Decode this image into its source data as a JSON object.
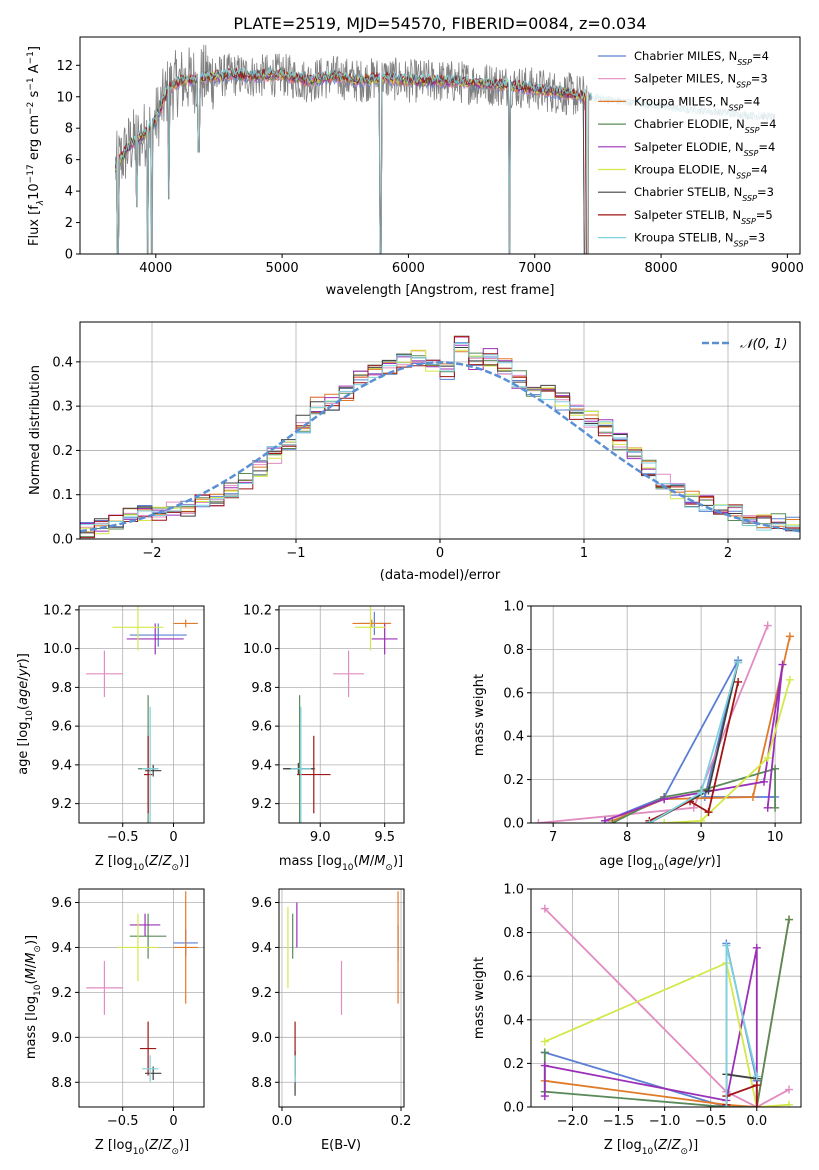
{
  "figure_title": "PLATE=2519, MJD=54570, FIBERID=0084, z=0.034",
  "legend_entries": [
    {
      "pre": "Chabrier MILES, N",
      "sub": "SSP",
      "post": "=4"
    },
    {
      "pre": "Salpeter MILES, N",
      "sub": "SSP",
      "post": "=3"
    },
    {
      "pre": "Kroupa MILES, N",
      "sub": "SSP",
      "post": "=4"
    },
    {
      "pre": "Chabrier ELODIE, N",
      "sub": "SSP",
      "post": "=4"
    },
    {
      "pre": "Salpeter ELODIE, N",
      "sub": "SSP",
      "post": "=4"
    },
    {
      "pre": "Kroupa ELODIE, N",
      "sub": "SSP",
      "post": "=4"
    },
    {
      "pre": "Chabrier STELIB, N",
      "sub": "SSP",
      "post": "=3"
    },
    {
      "pre": "Salpeter STELIB, N",
      "sub": "SSP",
      "post": "=5"
    },
    {
      "pre": "Kroupa STELIB, N",
      "sub": "SSP",
      "post": "=3"
    }
  ],
  "model_colors": [
    "#5b7fd4",
    "#e28cc2",
    "#e07b2a",
    "#5a8a5a",
    "#9b30b8",
    "#d4e84a",
    "#404040",
    "#a01515",
    "#7fd3de"
  ],
  "data_color": "#808080",
  "normal_color": "#5b8fd4",
  "chart_data": [
    {
      "type": "line",
      "id": "spectrum",
      "xlabel": "wavelength [Angstrom, rest frame]",
      "ylabel": "Flux [f_λ10^-17 erg cm^-2 s^-1 A^-1]",
      "xlim": [
        3400,
        9100
      ],
      "ylim": [
        0,
        13.8
      ],
      "xticks": [
        4000,
        5000,
        6000,
        7000,
        8000,
        9000
      ],
      "yticks": [
        0,
        2,
        4,
        6,
        8,
        10,
        12
      ],
      "grid": false,
      "legend_placement": "right",
      "continuum": {
        "x": [
          3680,
          3800,
          3900,
          4000,
          4100,
          4200,
          4400,
          4600,
          4800,
          5000,
          5200,
          5400,
          5600,
          5800,
          6000,
          6200,
          6500,
          6800,
          7000,
          7400,
          7800,
          8200,
          8500,
          8700,
          8900
        ],
        "y": [
          5.5,
          7.0,
          7.5,
          8.5,
          10.5,
          11.0,
          11.2,
          11.4,
          11.3,
          11.4,
          11.0,
          11.3,
          11.0,
          11.2,
          11.0,
          11.0,
          10.9,
          10.7,
          10.5,
          10.0,
          9.6,
          9.2,
          9.0,
          8.8,
          8.7
        ]
      },
      "noisy_series_end": 7430,
      "model_series_end": 7400,
      "narrow_features": [
        {
          "x": 3700,
          "y": 0
        },
        {
          "x": 3850,
          "y": 3.0
        },
        {
          "x": 3934,
          "y": 0
        },
        {
          "x": 3969,
          "y": 0
        },
        {
          "x": 4102,
          "y": 3.5
        },
        {
          "x": 4340,
          "y": 6.5
        },
        {
          "x": 5780,
          "y": 0
        },
        {
          "x": 6800,
          "y": 0
        },
        {
          "x": 7420,
          "y": 0
        }
      ]
    },
    {
      "type": "step",
      "id": "residual_hist",
      "xlabel": "(data-model)/error",
      "ylabel": "Normed distribution",
      "xlim": [
        -2.5,
        2.5
      ],
      "ylim": [
        0,
        0.49
      ],
      "xticks": [
        -2,
        -1,
        0,
        1,
        2
      ],
      "yticks": [
        0.0,
        0.1,
        0.2,
        0.3,
        0.4
      ],
      "grid": true,
      "legend_placement": "top-right",
      "legend_label": "𝒩(0, 1)",
      "bin_edges": [
        -2.5,
        -2.4,
        -2.3,
        -2.2,
        -2.1,
        -2.0,
        -1.9,
        -1.8,
        -1.7,
        -1.6,
        -1.5,
        -1.4,
        -1.3,
        -1.2,
        -1.1,
        -1.0,
        -0.9,
        -0.8,
        -0.7,
        -0.6,
        -0.5,
        -0.4,
        -0.3,
        -0.2,
        -0.1,
        0.0,
        0.1,
        0.2,
        0.3,
        0.4,
        0.5,
        0.6,
        0.7,
        0.8,
        0.9,
        1.0,
        1.1,
        1.2,
        1.3,
        1.4,
        1.5,
        1.6,
        1.7,
        1.8,
        1.9,
        2.0,
        2.1,
        2.2,
        2.3,
        2.4,
        2.5
      ],
      "hist_values": [
        0.02,
        0.03,
        0.04,
        0.05,
        0.06,
        0.06,
        0.07,
        0.07,
        0.08,
        0.09,
        0.11,
        0.13,
        0.16,
        0.19,
        0.22,
        0.26,
        0.3,
        0.31,
        0.33,
        0.36,
        0.38,
        0.39,
        0.4,
        0.41,
        0.39,
        0.38,
        0.44,
        0.4,
        0.41,
        0.39,
        0.36,
        0.34,
        0.33,
        0.31,
        0.29,
        0.27,
        0.25,
        0.22,
        0.19,
        0.16,
        0.13,
        0.11,
        0.09,
        0.08,
        0.07,
        0.06,
        0.05,
        0.04,
        0.04,
        0.03
      ],
      "normal_curve": {
        "mean": 0,
        "sigma": 1
      }
    },
    {
      "type": "scatter",
      "id": "age_vs_Z",
      "xlabel": "Z [log10(Z/Z☉)]",
      "ylabel": "age [log10(age/yr)]",
      "xlim": [
        -0.93,
        0.3
      ],
      "ylim": [
        9.1,
        10.22
      ],
      "xticks": [
        -0.5,
        0.0
      ],
      "yticks": [
        9.2,
        9.4,
        9.6,
        9.8,
        10.0,
        10.2
      ],
      "grid": true,
      "points": [
        {
          "x": -0.15,
          "y": 10.07,
          "ex": 0.28,
          "ey": 0.06,
          "c": 0
        },
        {
          "x": -0.68,
          "y": 9.87,
          "ex": 0.18,
          "ey": 0.12,
          "c": 1
        },
        {
          "x": 0.12,
          "y": 10.13,
          "ex": 0.12,
          "ey": 0.02,
          "c": 2
        },
        {
          "x": -0.25,
          "y": 9.38,
          "ex": 0.1,
          "ey": 0.38,
          "c": 3
        },
        {
          "x": -0.18,
          "y": 10.05,
          "ex": 0.28,
          "ey": 0.08,
          "c": 4
        },
        {
          "x": -0.35,
          "y": 10.11,
          "ex": 0.25,
          "ey": 0.12,
          "c": 5
        },
        {
          "x": -0.2,
          "y": 9.37,
          "ex": 0.08,
          "ey": 0.03,
          "c": 6
        },
        {
          "x": -0.25,
          "y": 9.35,
          "ex": 0.04,
          "ey": 0.2,
          "c": 7
        },
        {
          "x": -0.23,
          "y": 9.38,
          "ex": 0.08,
          "ey": 0.32,
          "c": 8
        }
      ]
    },
    {
      "type": "scatter",
      "id": "age_vs_mass",
      "xlabel": "mass [log10(M/M☉)]",
      "ylabel": "",
      "xlim": [
        8.68,
        9.65
      ],
      "ylim": [
        9.1,
        10.22
      ],
      "xticks": [
        9.0,
        9.5
      ],
      "yticks": [
        9.2,
        9.4,
        9.6,
        9.8,
        10.0,
        10.2
      ],
      "grid": true,
      "points": [
        {
          "x": 9.42,
          "y": 10.13,
          "ex": 0.12,
          "ey": 0.06,
          "c": 0
        },
        {
          "x": 9.22,
          "y": 9.87,
          "ex": 0.12,
          "ey": 0.12,
          "c": 1
        },
        {
          "x": 9.4,
          "y": 10.13,
          "ex": 0.15,
          "ey": 0.02,
          "c": 2
        },
        {
          "x": 8.84,
          "y": 9.38,
          "ex": 0.12,
          "ey": 0.38,
          "c": 3
        },
        {
          "x": 9.5,
          "y": 10.05,
          "ex": 0.1,
          "ey": 0.08,
          "c": 4
        },
        {
          "x": 9.39,
          "y": 10.11,
          "ex": 0.12,
          "ey": 0.12,
          "c": 5
        },
        {
          "x": 8.83,
          "y": 9.38,
          "ex": 0.12,
          "ey": 0.03,
          "c": 6
        },
        {
          "x": 8.95,
          "y": 9.35,
          "ex": 0.13,
          "ey": 0.2,
          "c": 7
        },
        {
          "x": 8.85,
          "y": 9.38,
          "ex": 0.08,
          "ey": 0.32,
          "c": 8
        }
      ]
    },
    {
      "type": "line",
      "id": "weight_vs_age",
      "xlabel": "age [log10(age/yr)]",
      "ylabel": "mass weight",
      "xlim": [
        6.7,
        10.35
      ],
      "ylim": [
        0,
        1.0
      ],
      "xticks": [
        7,
        8,
        9,
        10
      ],
      "yticks": [
        0.0,
        0.2,
        0.4,
        0.6,
        0.8,
        1.0
      ],
      "grid": true,
      "series": [
        {
          "c": 0,
          "x": [
            7.7,
            8.5,
            9.5,
            9.05,
            10.0
          ],
          "y": [
            0.01,
            0.12,
            0.75,
            0.12,
            0.12
          ]
        },
        {
          "c": 1,
          "x": [
            6.8,
            8.9,
            9.9
          ],
          "y": [
            0.0,
            0.07,
            0.91
          ]
        },
        {
          "c": 2,
          "x": [
            7.8,
            8.5,
            9.7,
            10.2
          ],
          "y": [
            0.01,
            0.11,
            0.12,
            0.86
          ]
        },
        {
          "c": 3,
          "x": [
            7.8,
            8.5,
            9.0,
            10.0,
            10.0
          ],
          "y": [
            0.0,
            0.12,
            0.15,
            0.25,
            0.07
          ]
        },
        {
          "c": 4,
          "x": [
            7.7,
            8.5,
            9.85,
            10.1,
            9.9
          ],
          "y": [
            0.01,
            0.11,
            0.19,
            0.73,
            0.07
          ]
        },
        {
          "c": 5,
          "x": [
            8.5,
            9.0,
            9.9,
            10.2
          ],
          "y": [
            0.0,
            0.01,
            0.3,
            0.66
          ]
        },
        {
          "c": 6,
          "x": [
            8.3,
            9.1,
            9.5
          ],
          "y": [
            0.0,
            0.15,
            0.74
          ]
        },
        {
          "c": 7,
          "x": [
            8.3,
            8.85,
            9.1,
            9.5
          ],
          "y": [
            0.01,
            0.1,
            0.05,
            0.65
          ]
        },
        {
          "c": 8,
          "x": [
            8.3,
            9.0,
            9.5
          ],
          "y": [
            0.0,
            0.14,
            0.74
          ]
        }
      ]
    },
    {
      "type": "scatter",
      "id": "mass_vs_Z",
      "xlabel": "Z [log10(Z/Z☉)]",
      "ylabel": "mass [log10(M/M☉)]",
      "xlim": [
        -0.93,
        0.3
      ],
      "ylim": [
        8.69,
        9.66
      ],
      "xticks": [
        -0.5,
        0.0
      ],
      "yticks": [
        8.8,
        9.0,
        9.2,
        9.4,
        9.6
      ],
      "grid": true,
      "points": [
        {
          "x": 0.12,
          "y": 9.42,
          "ex": 0.12,
          "ey": 0.06,
          "c": 0
        },
        {
          "x": -0.68,
          "y": 9.22,
          "ex": 0.18,
          "ey": 0.12,
          "c": 1
        },
        {
          "x": 0.12,
          "y": 9.4,
          "ex": 0.12,
          "ey": 0.25,
          "c": 2
        },
        {
          "x": -0.25,
          "y": 9.45,
          "ex": 0.18,
          "ey": 0.1,
          "c": 3
        },
        {
          "x": -0.28,
          "y": 9.5,
          "ex": 0.15,
          "ey": 0.05,
          "c": 4
        },
        {
          "x": -0.35,
          "y": 9.4,
          "ex": 0.2,
          "ey": 0.15,
          "c": 5
        },
        {
          "x": -0.2,
          "y": 8.84,
          "ex": 0.08,
          "ey": 0.03,
          "c": 6
        },
        {
          "x": -0.25,
          "y": 8.95,
          "ex": 0.08,
          "ey": 0.12,
          "c": 7
        },
        {
          "x": -0.23,
          "y": 8.86,
          "ex": 0.08,
          "ey": 0.06,
          "c": 8
        }
      ]
    },
    {
      "type": "scatter",
      "id": "mass_vs_EBV",
      "xlabel": "E(B-V)",
      "ylabel": "",
      "xlim": [
        -0.005,
        0.205
      ],
      "ylim": [
        8.69,
        9.66
      ],
      "xticks": [
        0.0,
        0.2
      ],
      "yticks": [
        8.8,
        9.0,
        9.2,
        9.4,
        9.6
      ],
      "grid": true,
      "points": [
        {
          "x": 0.195,
          "y": 9.42,
          "ex": 0,
          "ey": 0.08,
          "c": 0
        },
        {
          "x": 0.1,
          "y": 9.22,
          "ex": 0,
          "ey": 0.12,
          "c": 1
        },
        {
          "x": 0.195,
          "y": 9.4,
          "ex": 0,
          "ey": 0.25,
          "c": 2
        },
        {
          "x": 0.018,
          "y": 9.45,
          "ex": 0,
          "ey": 0.1,
          "c": 3
        },
        {
          "x": 0.025,
          "y": 9.5,
          "ex": 0,
          "ey": 0.1,
          "c": 4
        },
        {
          "x": 0.01,
          "y": 9.4,
          "ex": 0,
          "ey": 0.18,
          "c": 5
        },
        {
          "x": 0.022,
          "y": 8.84,
          "ex": 0,
          "ey": 0.1,
          "c": 6
        },
        {
          "x": 0.022,
          "y": 8.95,
          "ex": 0,
          "ey": 0.12,
          "c": 7
        },
        {
          "x": 0.022,
          "y": 8.86,
          "ex": 0,
          "ey": 0.06,
          "c": 8
        }
      ]
    },
    {
      "type": "line",
      "id": "weight_vs_Z",
      "xlabel": "Z [log10(Z/Z☉)]",
      "ylabel": "mass weight",
      "xlim": [
        -2.45,
        0.48
      ],
      "ylim": [
        0,
        1.0
      ],
      "xticks": [
        -2.0,
        -1.5,
        -1.0,
        -0.5,
        0.0
      ],
      "yticks": [
        0.0,
        0.2,
        0.4,
        0.6,
        0.8,
        1.0
      ],
      "grid": true,
      "series": [
        {
          "c": 0,
          "x": [
            -2.3,
            -0.33,
            -0.33,
            0.0,
            0.0
          ],
          "y": [
            0.25,
            0.0,
            0.75,
            0.12,
            0.12
          ]
        },
        {
          "c": 1,
          "x": [
            -2.3,
            -0.33,
            0.0,
            0.35
          ],
          "y": [
            0.91,
            0.07,
            0.0,
            0.08
          ]
        },
        {
          "c": 2,
          "x": [
            -2.3,
            -0.33,
            0.0,
            0.35
          ],
          "y": [
            0.12,
            0.01,
            0.0,
            0.86
          ]
        },
        {
          "c": 3,
          "x": [
            -2.3,
            -2.3,
            -0.33,
            0.0,
            0.35
          ],
          "y": [
            0.25,
            0.07,
            0.0,
            0.0,
            0.86
          ]
        },
        {
          "c": 4,
          "x": [
            -2.3,
            -2.3,
            -0.33,
            0.0,
            0.0
          ],
          "y": [
            0.05,
            0.19,
            0.03,
            0.73,
            0.0
          ]
        },
        {
          "c": 5,
          "x": [
            -2.3,
            -0.33,
            0.0,
            0.35
          ],
          "y": [
            0.3,
            0.66,
            0.0,
            0.01
          ]
        },
        {
          "c": 6,
          "x": [
            -0.33,
            -0.33,
            0.0
          ],
          "y": [
            0.0,
            0.15,
            0.13
          ]
        },
        {
          "c": 7,
          "x": [
            -0.33,
            -0.33,
            0.0,
            0.0
          ],
          "y": [
            0.01,
            0.05,
            0.1,
            0.0
          ]
        },
        {
          "c": 8,
          "x": [
            -0.33,
            -0.33,
            0.0
          ],
          "y": [
            0.0,
            0.74,
            0.14
          ]
        }
      ]
    }
  ]
}
